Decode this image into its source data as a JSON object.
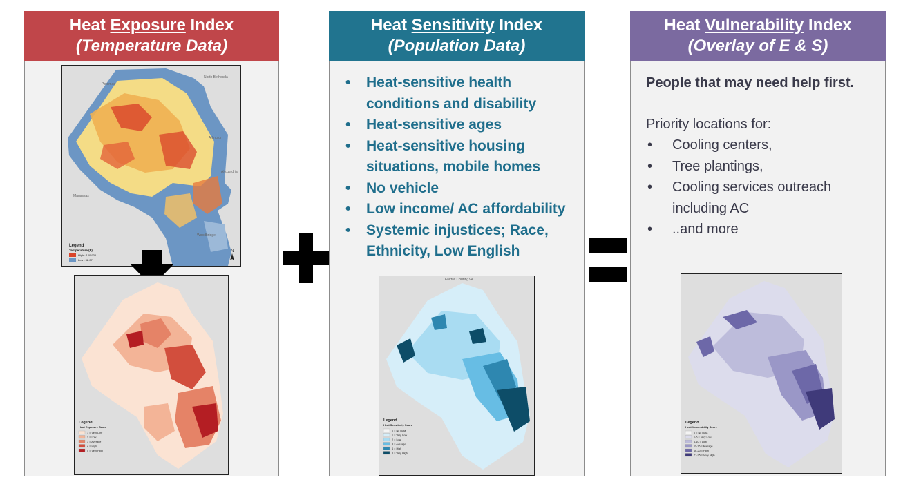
{
  "panels": [
    {
      "title_pre": "Heat ",
      "title_key": "Exposure",
      "title_post": " Index",
      "subtitle": "(Temperature Data)"
    },
    {
      "title_pre": "Heat ",
      "title_key": "Sensitivity",
      "title_post": " Index",
      "subtitle": "(Population Data)",
      "bullets": [
        "Heat-sensitive health conditions and disability",
        "Heat-sensitive ages",
        "Heat-sensitive housing situations, mobile homes",
        "No vehicle",
        "Low income/ AC affordability",
        "Systemic injustices; Race, Ethnicity, Low English"
      ]
    },
    {
      "title_pre": "Heat ",
      "title_key": "Vulnerability",
      "title_post": " Index",
      "subtitle": "(Overlay of E & S)",
      "lead": "People that may need help first.",
      "priority_label": "Priority locations for:",
      "bullets": [
        "Cooling centers,",
        "Tree plantings,",
        "Cooling services outreach including AC",
        "..and more"
      ]
    }
  ],
  "maps": {
    "temperature": {
      "legend_title": "Legend",
      "legend_sub": "Temperature (F)",
      "high": "High : 120.938",
      "low": "Low : 32.07",
      "places": [
        "Potomac",
        "North Bethesda",
        "Arlington",
        "Alexandria",
        "Manassas",
        "Woodbridge"
      ]
    },
    "exposure": {
      "legend_title": "Legend",
      "legend_sub": "Heat Exposure Score",
      "classes": [
        "1 = Very Low",
        "2 = Low",
        "3 = Average",
        "4 = High",
        "5 = Very High"
      ],
      "colors": [
        "#fbe3d3",
        "#f3b497",
        "#e58367",
        "#d24e3d",
        "#b41e23"
      ]
    },
    "sensitivity": {
      "top_label": "Fairfax County, VA",
      "legend_title": "Legend",
      "legend_sub": "Heat Sensitivity Score",
      "classes": [
        "0 = No Data",
        "1 = Very Low",
        "2 = Low",
        "3 = Average",
        "4 = High",
        "5 = Very High"
      ],
      "colors": [
        "#f4f4f4",
        "#d6eef9",
        "#a9dcf2",
        "#67bde4",
        "#2e87b0",
        "#0d4d68"
      ]
    },
    "vulnerability": {
      "legend_title": "Legend",
      "legend_sub": "Heat Vulnerability Score",
      "classes": [
        "0 = No Data",
        "1-5 = Very Low",
        "6-10 = Low",
        "11-15 = Average",
        "16-20 = High",
        "21-25 = Very High"
      ],
      "colors": [
        "#f4f4f4",
        "#dcdcec",
        "#bdbcdb",
        "#9a97c7",
        "#6d68a8",
        "#3f3a7a"
      ]
    }
  }
}
